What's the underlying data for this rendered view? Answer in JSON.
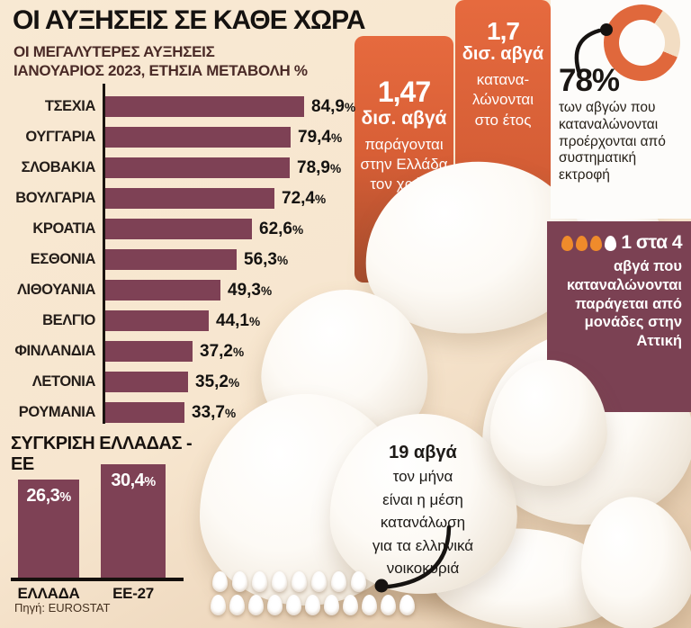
{
  "header": {
    "title": "ΟΙ ΑΥΞΗΣΕΙΣ ΣΕ ΚΑΘΕ ΧΩΡΑ",
    "subtitle": "ΟΙ ΜΕΓΑΛΥΤΕΡΕΣ ΑΥΞΗΣΕΙΣ\nΙΑΝΟΥΑΡΙΟΣ 2023, ΕΤΗΣΙΑ ΜΕΤΑΒΟΛΗ %"
  },
  "chart_data": [
    {
      "type": "bar",
      "orientation": "horizontal",
      "title": "ΟΙ ΜΕΓΑΛΥΤΕΡΕΣ ΑΥΞΗΣΕΙΣ",
      "subtitle": "ΙΑΝΟΥΑΡΙΟΣ 2023, ΕΤΗΣΙΑ ΜΕΤΑΒΟΛΗ %",
      "categories": [
        "ΤΣΕΧΙΑ",
        "ΟΥΓΓΑΡΙΑ",
        "ΣΛΟΒΑΚΙΑ",
        "ΒΟΥΛΓΑΡΙΑ",
        "ΚΡΟΑΤΙΑ",
        "ΕΣΘΟΝΙΑ",
        "ΛΙΘΟΥΑΝΙΑ",
        "ΒΕΛΓΙΟ",
        "ΦΙΝΛΑΝΔΙΑ",
        "ΛΕΤΟΝΙΑ",
        "ΡΟΥΜΑΝΙΑ"
      ],
      "values": [
        84.9,
        79.4,
        78.9,
        72.4,
        62.6,
        56.3,
        49.3,
        44.1,
        37.2,
        35.2,
        33.7
      ],
      "value_labels": [
        "84,9%",
        "79,4%",
        "78,9%",
        "72,4%",
        "62,6%",
        "56,3%",
        "49,3%",
        "44,1%",
        "37,2%",
        "35,2%",
        "33,7%"
      ],
      "unit": "%",
      "xlim": [
        0,
        90
      ],
      "bar_color": "#7e4155"
    },
    {
      "type": "bar",
      "orientation": "vertical",
      "title": "ΣΥΓΚΡΙΣΗ ΕΛΛΑΔΑΣ - ΕΕ",
      "categories": [
        "ΕΛΛΑΔΑ",
        "ΕΕ-27"
      ],
      "values": [
        26.3,
        30.4
      ],
      "value_labels": [
        "26,3%",
        "30,4%"
      ],
      "unit": "%",
      "bar_color": "#7e4155"
    },
    {
      "type": "pie",
      "subtype": "donut",
      "values": [
        78,
        22
      ],
      "highlight_label": "78%",
      "annotation": "των αβγών που καταναλώνονται προέρχονται από συστηματική εκτροφή",
      "colors": [
        "#e0683c",
        "#f2ddc3"
      ]
    }
  ],
  "production_box": {
    "number": "1,47",
    "unit": "δισ. αβγά",
    "text": "παράγονται\nστην Ελλάδα\nτον χρόνο"
  },
  "consumption_box": {
    "number": "1,7",
    "unit": "δισ. αβγά",
    "text": "κατανα-\nλώνονται\nστο έτος"
  },
  "donut_stat": {
    "percent": "78%",
    "text": "των αβγών που καταναλώνονται προέρχονται από συστηματική εκτροφή"
  },
  "attica_fact": {
    "icons": {
      "orange": 3,
      "white": 1
    },
    "headline": "1 στα 4",
    "text": "αβγά που καταναλώνονται παράγεται από μονάδες στην Αττική"
  },
  "household_fact": {
    "headline": "19 αβγά",
    "text": "τον μήνα\nείναι η μέση\nκατανάλωση\nγια τα ελληνικά\nνοικοκυριά",
    "egg_rows": [
      8,
      11
    ]
  },
  "source": "Πηγή: EUROSTAT",
  "colors": {
    "background": "#f7e6cf",
    "bar_maroon": "#7e4155",
    "panel_maroon": "#7b4153",
    "accent_orange": "#e0683c",
    "donut_rest": "#f2ddc3",
    "egg_icon_orange": "#ef8b2b"
  }
}
